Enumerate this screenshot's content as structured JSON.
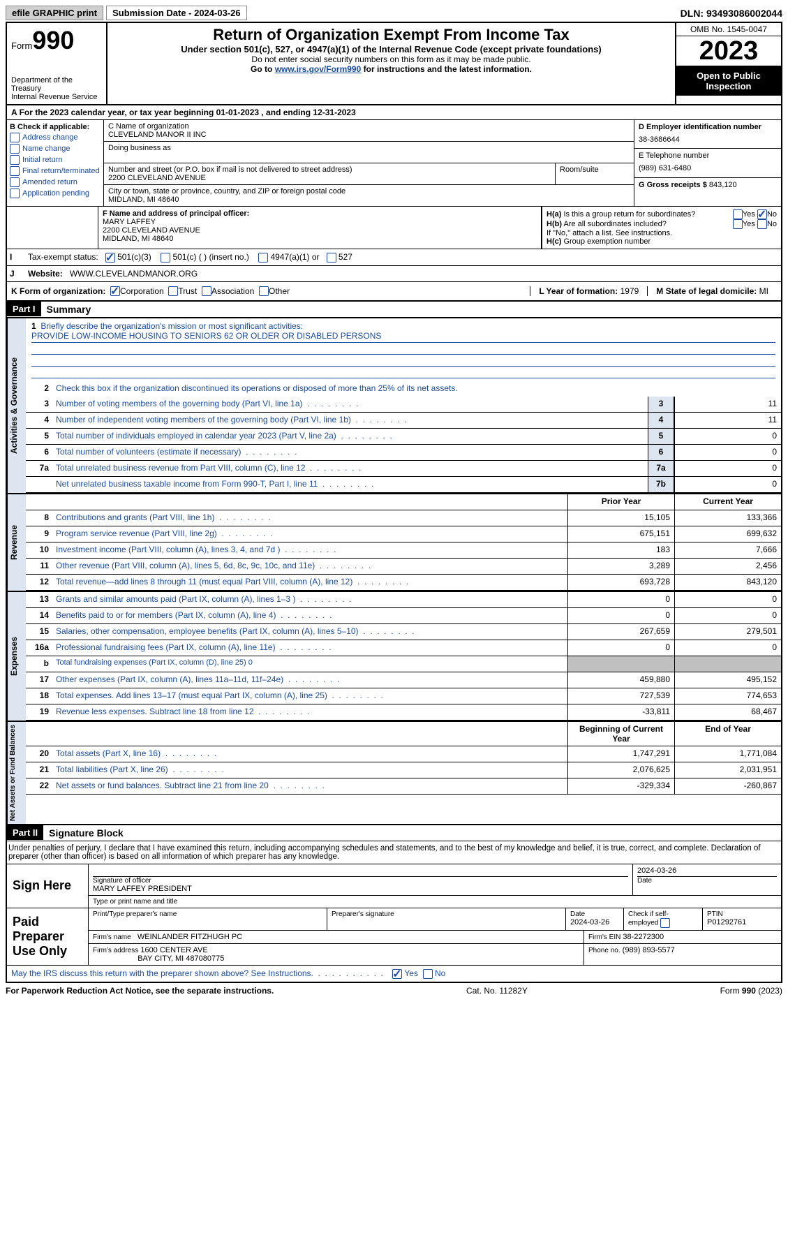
{
  "top": {
    "efile_btn": "efile GRAPHIC print",
    "submission": "Submission Date - 2024-03-26",
    "dln": "DLN: 93493086002044"
  },
  "header": {
    "form_label": "Form",
    "form_num": "990",
    "dept": "Department of the Treasury",
    "irs": "Internal Revenue Service",
    "title": "Return of Organization Exempt From Income Tax",
    "sub": "Under section 501(c), 527, or 4947(a)(1) of the Internal Revenue Code (except private foundations)",
    "sub2": "Do not enter social security numbers on this form as it may be made public.",
    "instr_pre": "Go to ",
    "instr_link": "www.irs.gov/Form990",
    "instr_post": " for instructions and the latest information.",
    "omb": "OMB No. 1545-0047",
    "year": "2023",
    "open": "Open to Public Inspection"
  },
  "tax_year": "For the 2023 calendar year, or tax year beginning 01-01-2023    , and ending 12-31-2023",
  "box_b": {
    "title": "B Check if applicable:",
    "items": [
      "Address change",
      "Name change",
      "Initial return",
      "Final return/terminated",
      "Amended return",
      "Application pending"
    ]
  },
  "box_c": {
    "name_label": "C Name of organization",
    "name": "CLEVELAND MANOR II INC",
    "dba_label": "Doing business as",
    "street_label": "Number and street (or P.O. box if mail is not delivered to street address)",
    "street": "2200 CLEVELAND AVENUE",
    "room_label": "Room/suite",
    "city_label": "City or town, state or province, country, and ZIP or foreign postal code",
    "city": "MIDLAND, MI  48640"
  },
  "box_d": {
    "ein_label": "D Employer identification number",
    "ein": "38-3686644",
    "phone_label": "E Telephone number",
    "phone": "(989) 631-6480",
    "gross_label": "G Gross receipts $",
    "gross": "843,120"
  },
  "box_f": {
    "label": "F  Name and address of principal officer:",
    "name": "MARY LAFFEY",
    "addr1": "2200 CLEVELAND AVENUE",
    "addr2": "MIDLAND, MI  48640"
  },
  "box_h": {
    "ha_label": "H(a)  Is this a group return for subordinates?",
    "hb_label": "H(b)  Are all subordinates included?",
    "hb_note": "If \"No,\" attach a list. See instructions.",
    "hc_label": "H(c)  Group exemption number",
    "yes": "Yes",
    "no": "No"
  },
  "box_i": {
    "label": "Tax-exempt status:",
    "opts": [
      "501(c)(3)",
      "501(c) (  ) (insert no.)",
      "4947(a)(1) or",
      "527"
    ]
  },
  "box_j": {
    "label": "Website:",
    "value": "WWW.CLEVELANDMANOR.ORG"
  },
  "box_k": {
    "label": "K Form of organization:",
    "opts": [
      "Corporation",
      "Trust",
      "Association",
      "Other"
    ],
    "year_label": "L Year of formation:",
    "year_val": "1979",
    "state_label": "M State of legal domicile:",
    "state_val": "MI"
  },
  "part1": {
    "label": "Part I",
    "title": "Summary",
    "line1": "Briefly describe the organization's mission or most significant activities:",
    "mission": "PROVIDE LOW-INCOME HOUSING TO SENIORS 62 OR OLDER OR DISABLED PERSONS",
    "line2": "Check this box       if the organization discontinued its operations or disposed of more than 25% of its net assets.",
    "prior_year": "Prior Year",
    "current_year": "Current Year",
    "begin_year": "Beginning of Current Year",
    "end_year": "End of Year"
  },
  "gov_lines": [
    {
      "n": "3",
      "d": "Number of voting members of the governing body (Part VI, line 1a)",
      "sn": "3",
      "v": "11"
    },
    {
      "n": "4",
      "d": "Number of independent voting members of the governing body (Part VI, line 1b)",
      "sn": "4",
      "v": "11"
    },
    {
      "n": "5",
      "d": "Total number of individuals employed in calendar year 2023 (Part V, line 2a)",
      "sn": "5",
      "v": "0"
    },
    {
      "n": "6",
      "d": "Total number of volunteers (estimate if necessary)",
      "sn": "6",
      "v": "0"
    },
    {
      "n": "7a",
      "d": "Total unrelated business revenue from Part VIII, column (C), line 12",
      "sn": "7a",
      "v": "0"
    },
    {
      "n": "",
      "d": "Net unrelated business taxable income from Form 990-T, Part I, line 11",
      "sn": "7b",
      "v": "0"
    }
  ],
  "rev_lines": [
    {
      "n": "8",
      "d": "Contributions and grants (Part VIII, line 1h)",
      "p": "15,105",
      "c": "133,366"
    },
    {
      "n": "9",
      "d": "Program service revenue (Part VIII, line 2g)",
      "p": "675,151",
      "c": "699,632"
    },
    {
      "n": "10",
      "d": "Investment income (Part VIII, column (A), lines 3, 4, and 7d )",
      "p": "183",
      "c": "7,666"
    },
    {
      "n": "11",
      "d": "Other revenue (Part VIII, column (A), lines 5, 6d, 8c, 9c, 10c, and 11e)",
      "p": "3,289",
      "c": "2,456"
    },
    {
      "n": "12",
      "d": "Total revenue—add lines 8 through 11 (must equal Part VIII, column (A), line 12)",
      "p": "693,728",
      "c": "843,120"
    }
  ],
  "exp_lines": [
    {
      "n": "13",
      "d": "Grants and similar amounts paid (Part IX, column (A), lines 1–3 )",
      "p": "0",
      "c": "0"
    },
    {
      "n": "14",
      "d": "Benefits paid to or for members (Part IX, column (A), line 4)",
      "p": "0",
      "c": "0"
    },
    {
      "n": "15",
      "d": "Salaries, other compensation, employee benefits (Part IX, column (A), lines 5–10)",
      "p": "267,659",
      "c": "279,501"
    },
    {
      "n": "16a",
      "d": "Professional fundraising fees (Part IX, column (A), line 11e)",
      "p": "0",
      "c": "0"
    },
    {
      "n": "b",
      "d": "Total fundraising expenses (Part IX, column (D), line 25) 0",
      "grey": true
    },
    {
      "n": "17",
      "d": "Other expenses (Part IX, column (A), lines 11a–11d, 11f–24e)",
      "p": "459,880",
      "c": "495,152"
    },
    {
      "n": "18",
      "d": "Total expenses. Add lines 13–17 (must equal Part IX, column (A), line 25)",
      "p": "727,539",
      "c": "774,653"
    },
    {
      "n": "19",
      "d": "Revenue less expenses. Subtract line 18 from line 12",
      "p": "-33,811",
      "c": "68,467"
    }
  ],
  "net_lines": [
    {
      "n": "20",
      "d": "Total assets (Part X, line 16)",
      "p": "1,747,291",
      "c": "1,771,084"
    },
    {
      "n": "21",
      "d": "Total liabilities (Part X, line 26)",
      "p": "2,076,625",
      "c": "2,031,951"
    },
    {
      "n": "22",
      "d": "Net assets or fund balances. Subtract line 21 from line 20",
      "p": "-329,334",
      "c": "-260,867"
    }
  ],
  "part2": {
    "label": "Part II",
    "title": "Signature Block",
    "text": "Under penalties of perjury, I declare that I have examined this return, including accompanying schedules and statements, and to the best of my knowledge and belief, it is true, correct, and complete. Declaration of preparer (other than officer) is based on all information of which preparer has any knowledge."
  },
  "sign": {
    "here": "Sign Here",
    "sig_officer": "Signature of officer",
    "officer": "MARY LAFFEY PRESIDENT",
    "type_title": "Type or print name and title",
    "date_label": "Date",
    "date": "2024-03-26"
  },
  "preparer": {
    "label": "Paid Preparer Use Only",
    "print_name": "Print/Type preparer's name",
    "prep_sig": "Preparer's signature",
    "date": "Date",
    "date_val": "2024-03-26",
    "check": "Check       if self-employed",
    "ptin_label": "PTIN",
    "ptin": "P01292761",
    "firm_name_label": "Firm's name",
    "firm_name": "WEINLANDER FITZHUGH PC",
    "firm_ein_label": "Firm's EIN",
    "firm_ein": "38-2272300",
    "firm_addr_label": "Firm's address",
    "firm_addr1": "1600 CENTER AVE",
    "firm_addr2": "BAY CITY, MI  487080775",
    "phone_label": "Phone no.",
    "phone": "(989) 893-5577"
  },
  "discuss": "May the IRS discuss this return with the preparer shown above? See Instructions.",
  "footer": {
    "left": "For Paperwork Reduction Act Notice, see the separate instructions.",
    "center": "Cat. No. 11282Y",
    "right": "Form 990 (2023)"
  }
}
